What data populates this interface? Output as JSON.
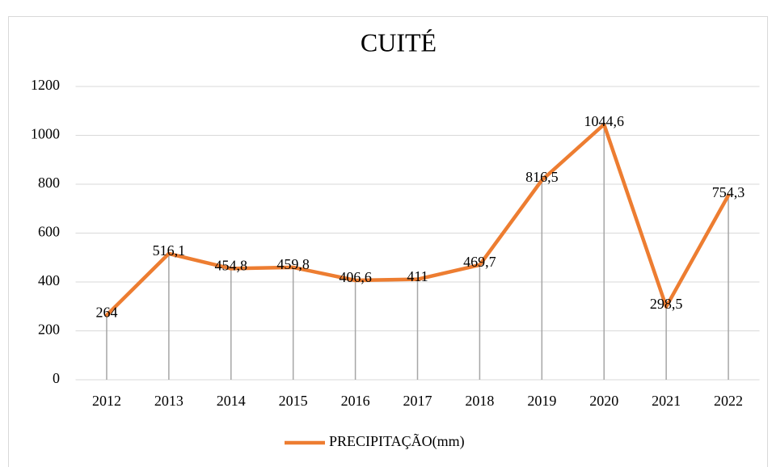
{
  "chart_data": {
    "type": "line",
    "title": "CUITÉ",
    "categories": [
      "2012",
      "2013",
      "2014",
      "2015",
      "2016",
      "2017",
      "2018",
      "2019",
      "2020",
      "2021",
      "2022"
    ],
    "series": [
      {
        "name": "PRECIPITAÇÃO(mm)",
        "color": "#ed7d31",
        "values": [
          264,
          516.1,
          454.8,
          459.8,
          406.6,
          411,
          469.7,
          816.5,
          1044.6,
          298.5,
          754.3
        ],
        "value_labels": [
          "264",
          "516,1",
          "454,8",
          "459,8",
          "406,6",
          "411",
          "469,7",
          "816,5",
          "1044,6",
          "298,5",
          "754,3"
        ]
      }
    ],
    "ylim": [
      0,
      1200
    ],
    "yticks": [
      0,
      200,
      400,
      600,
      800,
      1000,
      1200
    ],
    "grid": true,
    "drop_lines": true,
    "legend": "bottom"
  }
}
